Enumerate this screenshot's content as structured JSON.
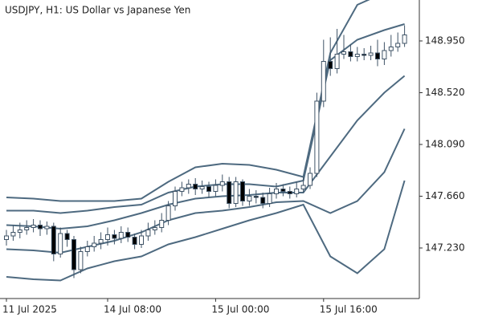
{
  "chart_data": {
    "type": "candlestick",
    "title": "USDJPY, H1:  US Dollar vs Japanese Yen",
    "categories": [
      "11 Jul 2025",
      null,
      null,
      null,
      null,
      null,
      null,
      null,
      null,
      null,
      null,
      null,
      null,
      null,
      null,
      "14 Jul 08:00",
      null,
      null,
      null,
      null,
      null,
      null,
      null,
      null,
      null,
      null,
      null,
      null,
      null,
      null,
      null,
      "15 Jul 00:00",
      null,
      null,
      null,
      null,
      null,
      null,
      null,
      null,
      null,
      null,
      null,
      null,
      null,
      null,
      null,
      "15 Jul 16:00",
      null,
      null,
      null,
      null,
      null,
      null,
      null,
      null,
      null,
      null,
      null,
      null
    ],
    "open": [
      147.3,
      147.33,
      147.36,
      147.38,
      147.4,
      147.42,
      147.39,
      147.41,
      147.18,
      147.35,
      147.3,
      147.05,
      147.2,
      147.24,
      147.27,
      147.3,
      147.34,
      147.31,
      147.36,
      147.32,
      147.26,
      147.33,
      147.38,
      147.4,
      147.46,
      147.58,
      147.7,
      147.73,
      147.76,
      147.72,
      147.74,
      147.7,
      147.75,
      147.78,
      147.6,
      147.78,
      147.62,
      147.66,
      147.65,
      147.6,
      147.68,
      147.72,
      147.7,
      147.68,
      147.72,
      147.75,
      147.85,
      148.45,
      148.78,
      148.72,
      148.84,
      148.86,
      148.82,
      148.84,
      148.83,
      148.85,
      148.8,
      148.87,
      148.9,
      148.93
    ],
    "high": [
      147.38,
      147.42,
      147.44,
      147.46,
      147.47,
      147.46,
      147.45,
      147.44,
      147.4,
      147.38,
      147.33,
      147.24,
      147.29,
      147.33,
      147.36,
      147.4,
      147.38,
      147.41,
      147.4,
      147.35,
      147.38,
      147.44,
      147.46,
      147.52,
      147.62,
      147.74,
      147.78,
      147.8,
      147.81,
      147.79,
      147.78,
      147.8,
      147.84,
      147.82,
      147.82,
      147.8,
      147.72,
      147.71,
      147.69,
      147.73,
      147.77,
      147.76,
      147.74,
      147.78,
      147.82,
      147.9,
      148.52,
      148.96,
      148.98,
      149.05,
      149.0,
      148.92,
      148.9,
      148.89,
      148.91,
      148.96,
      148.94,
      149.0,
      149.02,
      149.08
    ],
    "low": [
      147.25,
      147.29,
      147.31,
      147.34,
      147.36,
      147.33,
      147.34,
      147.12,
      147.15,
      147.24,
      146.98,
      147.02,
      147.16,
      147.2,
      147.22,
      147.25,
      147.26,
      147.27,
      147.28,
      147.22,
      147.23,
      147.29,
      147.34,
      147.36,
      147.42,
      147.54,
      147.66,
      147.68,
      147.67,
      147.68,
      147.65,
      147.66,
      147.7,
      147.56,
      147.57,
      147.58,
      147.58,
      147.6,
      147.56,
      147.57,
      147.64,
      147.66,
      147.64,
      147.65,
      147.69,
      147.72,
      147.82,
      148.4,
      148.66,
      148.68,
      148.8,
      148.78,
      148.78,
      148.79,
      148.79,
      148.74,
      148.75,
      148.82,
      148.86,
      148.9
    ],
    "close": [
      147.33,
      147.36,
      147.38,
      147.4,
      147.42,
      147.39,
      147.41,
      147.18,
      147.35,
      147.3,
      147.05,
      147.2,
      147.24,
      147.27,
      147.3,
      147.34,
      147.31,
      147.36,
      147.32,
      147.26,
      147.33,
      147.38,
      147.4,
      147.46,
      147.58,
      147.7,
      147.73,
      147.76,
      147.72,
      147.74,
      147.7,
      147.75,
      147.78,
      147.6,
      147.78,
      147.62,
      147.66,
      147.65,
      147.6,
      147.68,
      147.72,
      147.7,
      147.68,
      147.72,
      147.75,
      147.85,
      148.45,
      148.78,
      148.72,
      148.84,
      148.86,
      148.82,
      148.84,
      148.83,
      148.85,
      148.8,
      148.87,
      148.9,
      148.93,
      149.0
    ],
    "candle_color": "#3f5366",
    "band_index": [
      0,
      4,
      8,
      12,
      16,
      20,
      24,
      28,
      32,
      36,
      40,
      44,
      48,
      52,
      56,
      59
    ],
    "bands": [
      {
        "color": "#4e6a80",
        "values": [
          147.65,
          147.64,
          147.62,
          147.62,
          147.62,
          147.64,
          147.78,
          147.9,
          147.93,
          147.92,
          147.88,
          147.82,
          148.85,
          149.25,
          149.35,
          149.4
        ]
      },
      {
        "color": "#4e6a80",
        "values": [
          147.54,
          147.54,
          147.52,
          147.54,
          147.57,
          147.59,
          147.69,
          147.74,
          147.76,
          147.76,
          147.74,
          147.79,
          148.79,
          148.96,
          149.04,
          149.09
        ]
      },
      {
        "color": "#4e6a80",
        "values": [
          147.42,
          147.41,
          147.39,
          147.41,
          147.46,
          147.52,
          147.59,
          147.64,
          147.66,
          147.67,
          147.69,
          147.69,
          147.99,
          148.29,
          148.52,
          148.66
        ]
      },
      {
        "color": "#4e6a80",
        "values": [
          147.22,
          147.21,
          147.19,
          147.24,
          147.29,
          147.36,
          147.46,
          147.52,
          147.54,
          147.57,
          147.61,
          147.62,
          147.52,
          147.62,
          147.86,
          148.22
        ]
      },
      {
        "color": "#4e6a80",
        "values": [
          146.99,
          146.97,
          146.96,
          147.06,
          147.12,
          147.16,
          147.26,
          147.32,
          147.39,
          147.46,
          147.52,
          147.59,
          147.16,
          147.02,
          147.22,
          147.79
        ]
      }
    ],
    "ylim": [
      146.81,
      149.29
    ],
    "yticks": [
      {
        "value": 147.23,
        "label": "147.230"
      },
      {
        "value": 147.66,
        "label": "147.660"
      },
      {
        "value": 148.09,
        "label": "148.090"
      },
      {
        "value": 148.52,
        "label": "148.520"
      },
      {
        "value": 148.95,
        "label": "148.950"
      }
    ]
  }
}
